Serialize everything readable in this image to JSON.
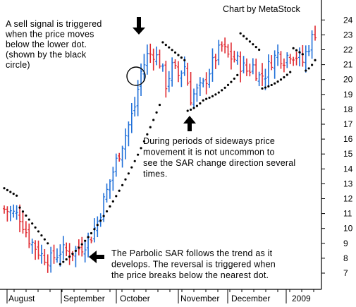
{
  "chart_data": {
    "type": "bar",
    "subtype": "ohlc-with-parabolic-sar",
    "credit": "Chart by MetaStock",
    "ylim": [
      6.5,
      25
    ],
    "yticks": [
      7,
      8,
      9,
      10,
      11,
      12,
      13,
      14,
      15,
      16,
      17,
      18,
      19,
      20,
      21,
      22,
      23,
      24
    ],
    "xlabels": [
      "August",
      "September",
      "October",
      "November",
      "December",
      "2009"
    ],
    "colors": {
      "up": "#1f6fd8",
      "down": "#e0282f",
      "sar": "#000000"
    },
    "annotations": [
      {
        "lines": [
          "A sell signal is triggered",
          "when the price moves",
          "below the lower dot.",
          "(shown by the black",
          "circle)"
        ],
        "arrow": "down"
      },
      {
        "lines": [
          "During periods of sideways price",
          "movement it is not uncommon to",
          "see the SAR change direction several",
          "times."
        ],
        "arrow": "up"
      },
      {
        "lines": [
          "The Parbolic SAR follows the trend as it",
          "develops. The reversal is triggered when",
          "the price breaks below the nearest dot."
        ],
        "arrow": "left"
      }
    ],
    "price_path": [
      [
        0,
        11.3
      ],
      [
        5,
        10.8
      ],
      [
        8,
        9.3
      ],
      [
        12,
        8.2
      ],
      [
        15,
        7.9
      ],
      [
        18,
        8.5
      ],
      [
        22,
        8.4
      ],
      [
        25,
        8.8
      ],
      [
        28,
        9.5
      ],
      [
        30,
        10.5
      ],
      [
        33,
        12.5
      ],
      [
        36,
        14.5
      ],
      [
        39,
        16.3
      ],
      [
        42,
        18.2
      ],
      [
        44,
        20.5
      ],
      [
        46,
        21.6
      ],
      [
        48,
        21.8
      ],
      [
        50,
        21.2
      ],
      [
        52,
        19.7
      ],
      [
        54,
        20.8
      ],
      [
        56,
        20.3
      ],
      [
        58,
        20.9
      ],
      [
        60,
        18.8
      ],
      [
        62,
        19.2
      ],
      [
        64,
        19.6
      ],
      [
        66,
        20.6
      ],
      [
        68,
        21.5
      ],
      [
        70,
        22.2
      ],
      [
        72,
        21.6
      ],
      [
        74,
        21.4
      ],
      [
        76,
        21.0
      ],
      [
        78,
        20.6
      ],
      [
        80,
        20.9
      ],
      [
        82,
        20.2
      ],
      [
        84,
        20.4
      ],
      [
        86,
        21.3
      ],
      [
        88,
        21.7
      ],
      [
        90,
        21.4
      ],
      [
        92,
        21.8
      ],
      [
        94,
        21.6
      ],
      [
        96,
        21.2
      ],
      [
        98,
        22.3
      ],
      [
        100,
        23.2
      ]
    ],
    "sar_segments": [
      {
        "from": 0,
        "to": 4,
        "start": 12.7,
        "end": 12.2
      },
      {
        "from": 5,
        "to": 14,
        "start": 11.4,
        "end": 9.0
      },
      {
        "from": 18,
        "to": 50,
        "start": 7.6,
        "end": 18.3
      },
      {
        "from": 51,
        "to": 58,
        "start": 22.5,
        "end": 21.3
      },
      {
        "from": 59,
        "to": 64,
        "start": 17.9,
        "end": 18.6
      },
      {
        "from": 65,
        "to": 75,
        "start": 18.7,
        "end": 20.3
      },
      {
        "from": 76,
        "to": 82,
        "start": 23.1,
        "end": 22.0
      },
      {
        "from": 83,
        "to": 92,
        "start": 19.4,
        "end": 20.5
      },
      {
        "from": 93,
        "to": 96,
        "start": 22.1,
        "end": 21.7
      },
      {
        "from": 97,
        "to": 100,
        "start": 20.6,
        "end": 21.3
      }
    ],
    "bar_count": 101
  }
}
